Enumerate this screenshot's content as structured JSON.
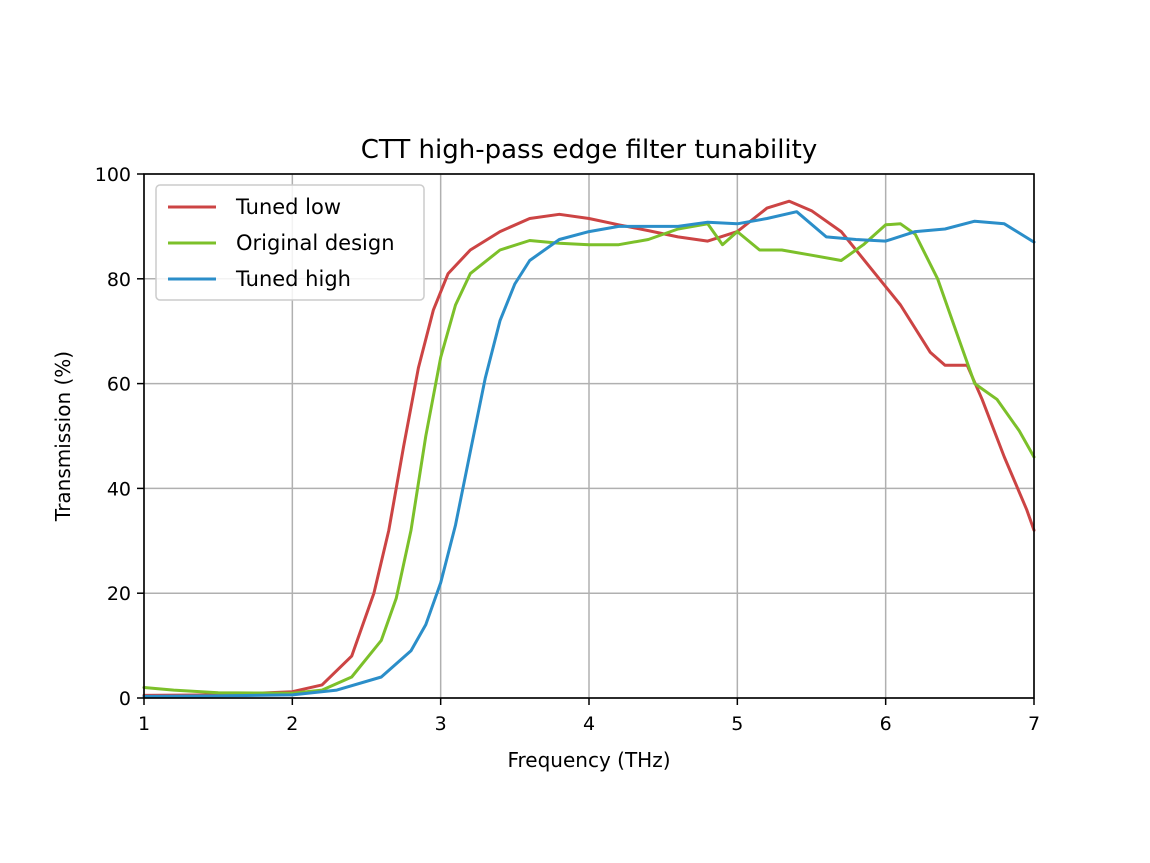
{
  "chart_data": {
    "type": "line",
    "title": "CTT high-pass edge filter tunability",
    "xlabel": "Frequency (THz)",
    "ylabel": "Transmission (%)",
    "xlim": [
      1,
      7
    ],
    "ylim": [
      0,
      100
    ],
    "xticks": [
      "1",
      "2",
      "3",
      "4",
      "5",
      "6",
      "7"
    ],
    "yticks": [
      "0",
      "20",
      "40",
      "60",
      "80",
      "100"
    ],
    "grid": true,
    "legend_position": "top-left",
    "series": [
      {
        "name": "Tuned low",
        "color": "#cc4444",
        "x": [
          1.0,
          1.5,
          2.0,
          2.2,
          2.4,
          2.55,
          2.65,
          2.75,
          2.85,
          2.95,
          3.05,
          3.2,
          3.4,
          3.6,
          3.8,
          4.0,
          4.2,
          4.4,
          4.6,
          4.8,
          5.0,
          5.2,
          5.35,
          5.5,
          5.7,
          5.9,
          6.1,
          6.3,
          6.4,
          6.55,
          6.65,
          6.8,
          6.95,
          7.0
        ],
        "y": [
          0.5,
          0.6,
          1.2,
          2.5,
          8.0,
          20.0,
          32.0,
          48.0,
          63.0,
          74.0,
          81.0,
          85.5,
          89.0,
          91.5,
          92.3,
          91.5,
          90.3,
          89.2,
          88.0,
          87.2,
          89.0,
          93.5,
          94.8,
          93.0,
          89.0,
          82.0,
          75.0,
          66.0,
          63.5,
          63.5,
          57.0,
          46.0,
          36.0,
          32.0
        ]
      },
      {
        "name": "Original design",
        "color": "#7cc02a",
        "x": [
          1.0,
          1.2,
          1.5,
          2.0,
          2.2,
          2.4,
          2.6,
          2.7,
          2.8,
          2.9,
          3.0,
          3.1,
          3.2,
          3.4,
          3.6,
          3.8,
          4.0,
          4.2,
          4.4,
          4.6,
          4.8,
          4.9,
          5.0,
          5.15,
          5.3,
          5.5,
          5.7,
          5.85,
          6.0,
          6.1,
          6.2,
          6.35,
          6.5,
          6.6,
          6.75,
          6.9,
          7.0
        ],
        "y": [
          2.0,
          1.5,
          1.0,
          0.9,
          1.5,
          4.0,
          11.0,
          19.0,
          32.0,
          50.0,
          65.0,
          75.0,
          81.0,
          85.5,
          87.3,
          86.8,
          86.5,
          86.5,
          87.5,
          89.5,
          90.5,
          86.5,
          89.0,
          85.5,
          85.5,
          84.5,
          83.5,
          86.5,
          90.3,
          90.5,
          88.5,
          80.0,
          68.0,
          60.0,
          57.0,
          51.0,
          46.0
        ]
      },
      {
        "name": "Tuned high",
        "color": "#2b8ec9",
        "x": [
          1.0,
          1.5,
          2.0,
          2.3,
          2.6,
          2.8,
          2.9,
          3.0,
          3.1,
          3.2,
          3.3,
          3.4,
          3.5,
          3.6,
          3.8,
          4.0,
          4.2,
          4.4,
          4.6,
          4.8,
          5.0,
          5.2,
          5.4,
          5.6,
          5.8,
          6.0,
          6.2,
          6.4,
          6.6,
          6.8,
          7.0
        ],
        "y": [
          0.3,
          0.4,
          0.6,
          1.5,
          4.0,
          9.0,
          14.0,
          22.0,
          33.0,
          47.0,
          61.0,
          72.0,
          79.0,
          83.5,
          87.5,
          89.0,
          90.0,
          90.0,
          90.0,
          90.8,
          90.5,
          91.5,
          92.8,
          88.0,
          87.5,
          87.2,
          89.0,
          89.5,
          91.0,
          90.5,
          87.0
        ]
      }
    ]
  }
}
